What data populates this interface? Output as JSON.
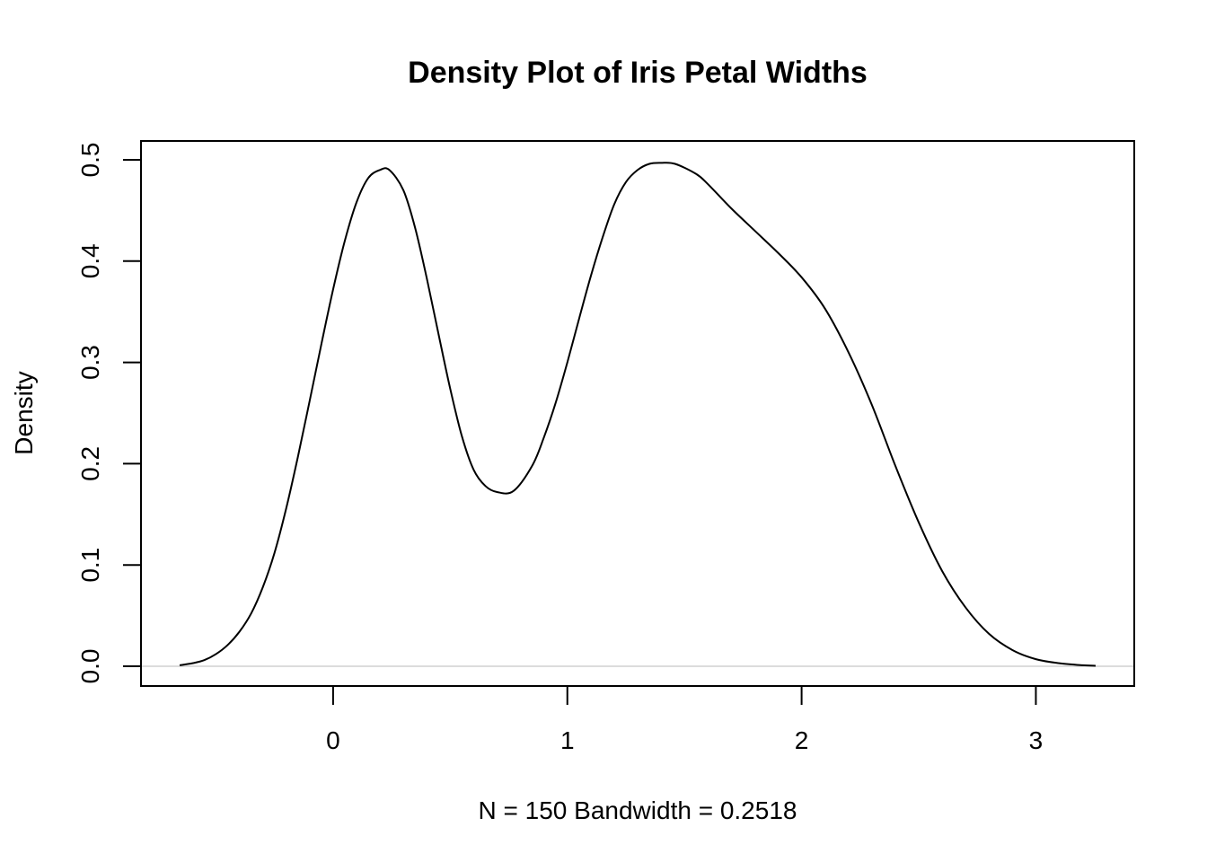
{
  "chart_data": {
    "type": "line",
    "title": "Density Plot of Iris Petal Widths",
    "xlabel": "N = 150   Bandwidth = 0.2518",
    "ylabel": "Density",
    "xlim": [
      -0.82,
      3.42
    ],
    "ylim": [
      -0.0195,
      0.5186
    ],
    "x_ticks": [
      0,
      1,
      2,
      3
    ],
    "x_tick_labels": [
      "0",
      "1",
      "2",
      "3"
    ],
    "y_ticks": [
      0.0,
      0.1,
      0.2,
      0.3,
      0.4,
      0.5
    ],
    "y_tick_labels": [
      "0.0",
      "0.1",
      "0.2",
      "0.3",
      "0.4",
      "0.5"
    ],
    "grid": false,
    "zero_line": true,
    "colors": {
      "line": "#000000",
      "zero_line": "#d0d0d0",
      "frame": "#000000"
    },
    "series": [
      {
        "x": [
          -0.655,
          -0.6,
          -0.55,
          -0.5,
          -0.45,
          -0.4,
          -0.35,
          -0.3,
          -0.25,
          -0.2,
          -0.15,
          -0.1,
          -0.05,
          0.0,
          0.05,
          0.1,
          0.15,
          0.2,
          0.24,
          0.3,
          0.35,
          0.4,
          0.45,
          0.5,
          0.55,
          0.6,
          0.65,
          0.7,
          0.77,
          0.85,
          0.9,
          0.95,
          1.0,
          1.05,
          1.1,
          1.15,
          1.2,
          1.25,
          1.3,
          1.35,
          1.4,
          1.46,
          1.55,
          1.6,
          1.7,
          1.8,
          1.9,
          2.0,
          2.1,
          2.2,
          2.3,
          2.4,
          2.5,
          2.6,
          2.7,
          2.8,
          2.9,
          3.0,
          3.1,
          3.2,
          3.255
        ],
        "y": [
          0.001,
          0.003,
          0.006,
          0.012,
          0.021,
          0.034,
          0.052,
          0.078,
          0.112,
          0.156,
          0.207,
          0.262,
          0.318,
          0.372,
          0.42,
          0.458,
          0.482,
          0.49,
          0.49,
          0.47,
          0.433,
          0.383,
          0.328,
          0.274,
          0.227,
          0.194,
          0.178,
          0.172,
          0.173,
          0.198,
          0.226,
          0.26,
          0.3,
          0.343,
          0.385,
          0.423,
          0.456,
          0.478,
          0.49,
          0.496,
          0.497,
          0.496,
          0.486,
          0.476,
          0.452,
          0.43,
          0.408,
          0.384,
          0.353,
          0.31,
          0.258,
          0.198,
          0.142,
          0.094,
          0.058,
          0.032,
          0.016,
          0.007,
          0.003,
          0.001,
          0.0005
        ]
      }
    ]
  }
}
